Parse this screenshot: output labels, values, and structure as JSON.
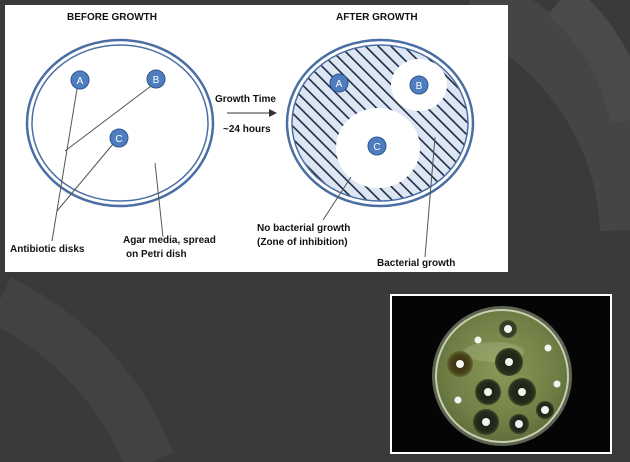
{
  "diagram": {
    "before_title": "BEFORE GROWTH",
    "after_title": "AFTER GROWTH",
    "growth_time": "Growth Time",
    "duration": "~24 hours",
    "disk_labels": [
      "A",
      "B",
      "C"
    ],
    "label_antibiotic_disks": "Antibiotic disks",
    "label_agar_line1": "Agar media, spread",
    "label_agar_line2": "on Petri dish",
    "label_no_growth_line1": "No bacterial growth",
    "label_no_growth_line2": "(Zone of inhibition)",
    "label_bacterial_growth": "Bacterial growth"
  },
  "colors": {
    "slide_background": "#3a3a3a",
    "dish_rim": "#4a6fa5",
    "dish_fill": "#dde6f3",
    "disk_fill": "#4f7ec0",
    "hatch": "#1f2a44"
  },
  "photo": {
    "subject": "agar plate with antibiotic disks and inhibition zones"
  }
}
